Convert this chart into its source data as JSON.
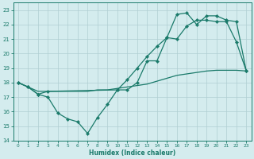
{
  "line_dip_x": [
    0,
    1,
    2,
    3,
    4,
    5,
    6,
    7,
    8,
    9,
    10,
    11,
    12,
    13,
    14,
    15,
    16,
    17,
    18,
    19,
    20,
    21,
    22,
    23
  ],
  "line_dip_y": [
    18.0,
    17.7,
    17.2,
    17.0,
    15.9,
    15.5,
    15.3,
    14.5,
    15.6,
    16.5,
    17.5,
    17.5,
    18.0,
    19.5,
    19.5,
    21.1,
    21.0,
    21.9,
    22.3,
    22.3,
    22.2,
    22.2,
    20.8,
    18.8
  ],
  "line_flat_x": [
    0,
    1,
    2,
    3,
    4,
    5,
    6,
    7,
    8,
    9,
    10,
    11,
    12,
    13,
    14,
    15,
    16,
    17,
    18,
    19,
    20,
    21,
    22,
    23
  ],
  "line_flat_y": [
    18.0,
    17.7,
    17.4,
    17.4,
    17.4,
    17.4,
    17.4,
    17.4,
    17.5,
    17.5,
    17.6,
    17.7,
    17.8,
    17.9,
    18.1,
    18.3,
    18.5,
    18.6,
    18.7,
    18.8,
    18.85,
    18.85,
    18.85,
    18.8
  ],
  "line_peak_x": [
    0,
    1,
    2,
    3,
    10,
    11,
    12,
    13,
    14,
    15,
    16,
    17,
    18,
    19,
    20,
    21,
    22,
    23
  ],
  "line_peak_y": [
    18.0,
    17.7,
    17.2,
    17.4,
    17.5,
    18.2,
    19.0,
    19.8,
    20.5,
    21.1,
    22.7,
    22.8,
    22.0,
    22.6,
    22.6,
    22.3,
    22.2,
    18.8
  ],
  "color": "#1a7a6a",
  "bg_color": "#d4ecee",
  "grid_color": "#b0ced2",
  "xlabel": "Humidex (Indice chaleur)",
  "xlim": [
    -0.5,
    23.5
  ],
  "ylim": [
    14,
    23.5
  ],
  "yticks": [
    14,
    15,
    16,
    17,
    18,
    19,
    20,
    21,
    22,
    23
  ],
  "xticks": [
    0,
    1,
    2,
    3,
    4,
    5,
    6,
    7,
    8,
    9,
    10,
    11,
    12,
    13,
    14,
    15,
    16,
    17,
    18,
    19,
    20,
    21,
    22,
    23
  ]
}
